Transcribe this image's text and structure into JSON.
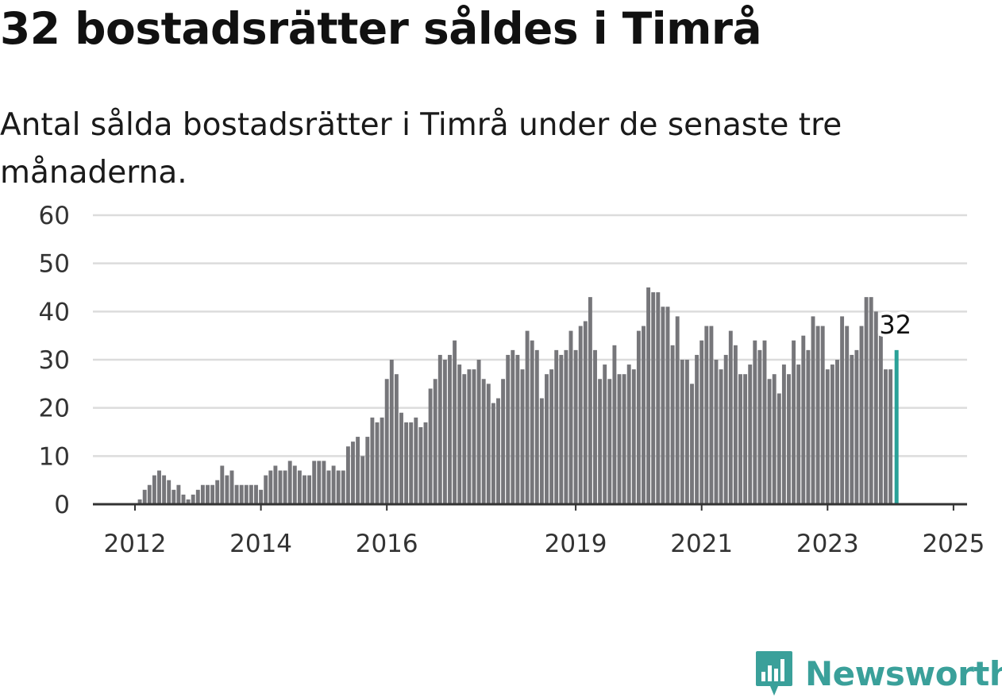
{
  "title": "32 bostadsrätter såldes i Timrå",
  "subtitle": "Antal sålda bostadsrätter i Timrå under de senaste tre månaderna.",
  "logo": {
    "text": "Newsworthy",
    "color": "#3aa09a",
    "icon": "newsworthy-logo-icon"
  },
  "chart_data": {
    "type": "bar",
    "ylim": [
      0,
      60
    ],
    "y_ticks": [
      "0",
      "10",
      "20",
      "30",
      "40",
      "50",
      "60"
    ],
    "x_tick_labels": [
      {
        "label": "2012",
        "index": 0
      },
      {
        "label": "2014",
        "index": 26
      },
      {
        "label": "2016",
        "index": 52
      },
      {
        "label": "2019",
        "index": 91
      },
      {
        "label": "2021",
        "index": 117
      },
      {
        "label": "2023",
        "index": 143
      },
      {
        "label": "2025",
        "index": 169
      }
    ],
    "grid": true,
    "bar_color": "#76767a",
    "highlight_color": "#2aa198",
    "highlight_label": "32",
    "values": [
      0,
      1,
      3,
      4,
      6,
      7,
      6,
      5,
      3,
      4,
      2,
      1,
      2,
      3,
      4,
      4,
      4,
      5,
      8,
      6,
      7,
      4,
      4,
      4,
      4,
      4,
      3,
      6,
      7,
      8,
      7,
      7,
      9,
      8,
      7,
      6,
      6,
      9,
      9,
      9,
      7,
      8,
      7,
      7,
      12,
      13,
      14,
      10,
      14,
      18,
      17,
      18,
      26,
      30,
      27,
      19,
      17,
      17,
      18,
      16,
      17,
      24,
      26,
      31,
      30,
      31,
      34,
      29,
      27,
      28,
      28,
      30,
      26,
      25,
      21,
      22,
      26,
      31,
      32,
      31,
      28,
      36,
      34,
      32,
      22,
      27,
      28,
      32,
      31,
      32,
      36,
      32,
      37,
      38,
      43,
      32,
      26,
      29,
      26,
      33,
      27,
      27,
      29,
      28,
      36,
      37,
      45,
      44,
      44,
      41,
      41,
      33,
      39,
      30,
      30,
      25,
      31,
      34,
      37,
      37,
      30,
      28,
      31,
      36,
      33,
      27,
      27,
      29,
      34,
      32,
      34,
      26,
      27,
      23,
      29,
      27,
      34,
      29,
      35,
      32,
      39,
      37,
      37,
      28,
      29,
      30,
      39,
      37,
      31,
      32,
      37,
      43,
      43,
      40,
      35,
      28,
      28,
      32
    ]
  }
}
